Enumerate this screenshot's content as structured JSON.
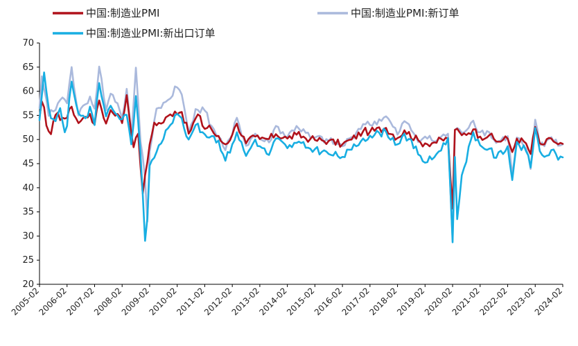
{
  "chart_data": {
    "type": "line",
    "title": "",
    "xlabel": "",
    "ylabel": "",
    "ylim": [
      20,
      70
    ],
    "yticks": [
      20,
      25,
      30,
      35,
      40,
      45,
      50,
      55,
      60,
      65,
      70
    ],
    "xticks": [
      "2005-02",
      "2006-02",
      "2007-02",
      "2008-02",
      "2009-02",
      "2010-02",
      "2011-02",
      "2012-02",
      "2013-02",
      "2014-02",
      "2015-02",
      "2016-02",
      "2017-02",
      "2018-02",
      "2019-02",
      "2020-02",
      "2021-02",
      "2022-02",
      "2023-02",
      "2024-02"
    ],
    "grid": false,
    "legend_placement": "top",
    "anchors_note_free": true,
    "series": [
      {
        "name": "中国:制造业PMI",
        "color": "#b0121b",
        "points": [
          [
            "2005-02",
            54.5
          ],
          [
            "2005-03",
            57.9
          ],
          [
            "2005-04",
            56.7
          ],
          [
            "2005-05",
            52.9
          ],
          [
            "2005-06",
            51.7
          ],
          [
            "2005-07",
            51.1
          ],
          [
            "2005-09",
            55.1
          ],
          [
            "2005-12",
            54.5
          ],
          [
            "2006-02",
            54.5
          ],
          [
            "2006-04",
            56.8
          ],
          [
            "2006-07",
            53.4
          ],
          [
            "2006-10",
            54.7
          ],
          [
            "2006-12",
            55.3
          ],
          [
            "2007-02",
            53.1
          ],
          [
            "2007-04",
            58.1
          ],
          [
            "2007-07",
            53.3
          ],
          [
            "2007-09",
            56.1
          ],
          [
            "2007-12",
            55.3
          ],
          [
            "2008-02",
            53.4
          ],
          [
            "2008-04",
            59.2
          ],
          [
            "2008-07",
            48.4
          ],
          [
            "2008-09",
            51.2
          ],
          [
            "2008-11",
            38.8
          ],
          [
            "2009-01",
            45.3
          ],
          [
            "2009-02",
            49.0
          ],
          [
            "2009-04",
            53.5
          ],
          [
            "2009-07",
            53.3
          ],
          [
            "2009-11",
            55.2
          ],
          [
            "2010-01",
            55.8
          ],
          [
            "2010-04",
            55.7
          ],
          [
            "2010-07",
            51.2
          ],
          [
            "2010-11",
            55.2
          ],
          [
            "2011-02",
            52.2
          ],
          [
            "2011-04",
            52.9
          ],
          [
            "2011-07",
            50.7
          ],
          [
            "2011-11",
            49.0
          ],
          [
            "2012-02",
            51.0
          ],
          [
            "2012-04",
            53.3
          ],
          [
            "2012-08",
            49.2
          ],
          [
            "2012-12",
            50.6
          ],
          [
            "2013-02",
            50.1
          ],
          [
            "2013-06",
            50.1
          ],
          [
            "2013-09",
            51.1
          ],
          [
            "2014-02",
            50.2
          ],
          [
            "2014-06",
            51.0
          ],
          [
            "2014-12",
            50.1
          ],
          [
            "2015-02",
            49.9
          ],
          [
            "2015-08",
            49.7
          ],
          [
            "2016-02",
            49.0
          ],
          [
            "2016-06",
            50.0
          ],
          [
            "2016-11",
            51.7
          ],
          [
            "2017-02",
            51.6
          ],
          [
            "2017-09",
            52.4
          ],
          [
            "2018-02",
            50.3
          ],
          [
            "2018-05",
            51.9
          ],
          [
            "2018-12",
            49.4
          ],
          [
            "2019-02",
            49.2
          ],
          [
            "2019-06",
            49.4
          ],
          [
            "2019-12",
            50.2
          ],
          [
            "2020-02",
            35.7
          ],
          [
            "2020-03",
            52.0
          ],
          [
            "2020-06",
            50.9
          ],
          [
            "2020-11",
            52.1
          ],
          [
            "2021-02",
            50.6
          ],
          [
            "2021-06",
            50.9
          ],
          [
            "2021-09",
            49.6
          ],
          [
            "2022-02",
            50.2
          ],
          [
            "2022-04",
            47.4
          ],
          [
            "2022-06",
            50.2
          ],
          [
            "2022-10",
            49.2
          ],
          [
            "2022-12",
            47.0
          ],
          [
            "2023-02",
            52.6
          ],
          [
            "2023-04",
            49.2
          ],
          [
            "2023-06",
            49.0
          ],
          [
            "2023-09",
            50.2
          ],
          [
            "2023-12",
            49.0
          ],
          [
            "2024-02",
            49.1
          ]
        ]
      },
      {
        "name": "中国:制造业PMI:新订单",
        "color": "#aab9dc",
        "points": [
          [
            "2005-02",
            56.5
          ],
          [
            "2005-03",
            63.1
          ],
          [
            "2005-04",
            60.5
          ],
          [
            "2005-06",
            54.9
          ],
          [
            "2005-08",
            55.8
          ],
          [
            "2005-10",
            57.5
          ],
          [
            "2005-12",
            58.7
          ],
          [
            "2006-02",
            57.5
          ],
          [
            "2006-04",
            65.0
          ],
          [
            "2006-07",
            55.0
          ],
          [
            "2006-10",
            57.3
          ],
          [
            "2006-12",
            58.9
          ],
          [
            "2007-02",
            56.4
          ],
          [
            "2007-04",
            65.1
          ],
          [
            "2007-07",
            56.1
          ],
          [
            "2007-09",
            59.5
          ],
          [
            "2007-12",
            57.5
          ],
          [
            "2008-02",
            54.4
          ],
          [
            "2008-04",
            60.5
          ],
          [
            "2008-06",
            50.9
          ],
          [
            "2008-08",
            64.9
          ],
          [
            "2008-10",
            49.7
          ],
          [
            "2008-12",
            41.9
          ],
          [
            "2009-01",
            33.0
          ],
          [
            "2009-02",
            47.5
          ],
          [
            "2009-05",
            56.4
          ],
          [
            "2009-09",
            57.8
          ],
          [
            "2009-11",
            58.5
          ],
          [
            "2010-01",
            61.0
          ],
          [
            "2010-04",
            59.3
          ],
          [
            "2010-07",
            51.4
          ],
          [
            "2010-10",
            56.3
          ],
          [
            "2011-02",
            56.0
          ],
          [
            "2011-05",
            52.8
          ],
          [
            "2011-08",
            50.6
          ],
          [
            "2011-11",
            47.8
          ],
          [
            "2012-02",
            51.0
          ],
          [
            "2012-04",
            54.5
          ],
          [
            "2012-08",
            48.7
          ],
          [
            "2012-12",
            51.2
          ],
          [
            "2013-02",
            50.1
          ],
          [
            "2013-06",
            49.4
          ],
          [
            "2013-09",
            52.8
          ],
          [
            "2014-02",
            50.5
          ],
          [
            "2014-06",
            52.8
          ],
          [
            "2014-12",
            50.4
          ],
          [
            "2015-02",
            50.4
          ],
          [
            "2015-08",
            49.7
          ],
          [
            "2016-02",
            48.6
          ],
          [
            "2016-06",
            50.5
          ],
          [
            "2016-11",
            53.2
          ],
          [
            "2017-02",
            53.0
          ],
          [
            "2017-09",
            54.8
          ],
          [
            "2018-02",
            51.0
          ],
          [
            "2018-05",
            53.8
          ],
          [
            "2018-12",
            49.7
          ],
          [
            "2019-02",
            50.6
          ],
          [
            "2019-06",
            49.6
          ],
          [
            "2019-12",
            51.2
          ],
          [
            "2020-02",
            29.3
          ],
          [
            "2020-03",
            52.0
          ],
          [
            "2020-06",
            51.4
          ],
          [
            "2020-11",
            53.9
          ],
          [
            "2021-02",
            51.5
          ],
          [
            "2021-06",
            51.5
          ],
          [
            "2021-09",
            49.3
          ],
          [
            "2022-02",
            50.7
          ],
          [
            "2022-04",
            42.6
          ],
          [
            "2022-06",
            50.4
          ],
          [
            "2022-10",
            48.1
          ],
          [
            "2022-12",
            43.9
          ],
          [
            "2023-02",
            54.1
          ],
          [
            "2023-04",
            48.8
          ],
          [
            "2023-06",
            48.6
          ],
          [
            "2023-09",
            50.5
          ],
          [
            "2023-12",
            48.7
          ],
          [
            "2024-02",
            49.0
          ]
        ]
      },
      {
        "name": "中国:制造业PMI:新出口订单",
        "color": "#18aee2",
        "points": [
          [
            "2005-02",
            54.0
          ],
          [
            "2005-04",
            63.9
          ],
          [
            "2005-05",
            60.0
          ],
          [
            "2005-07",
            54.4
          ],
          [
            "2005-09",
            53.8
          ],
          [
            "2005-11",
            56.5
          ],
          [
            "2006-01",
            51.5
          ],
          [
            "2006-02",
            52.8
          ],
          [
            "2006-03",
            58.5
          ],
          [
            "2006-04",
            62.0
          ],
          [
            "2006-07",
            55.4
          ],
          [
            "2006-10",
            54.4
          ],
          [
            "2006-12",
            56.8
          ],
          [
            "2007-02",
            53.0
          ],
          [
            "2007-04",
            61.7
          ],
          [
            "2007-07",
            54.8
          ],
          [
            "2007-09",
            57.0
          ],
          [
            "2007-12",
            55.0
          ],
          [
            "2008-02",
            54.2
          ],
          [
            "2008-04",
            55.1
          ],
          [
            "2008-06",
            49.0
          ],
          [
            "2008-08",
            59.0
          ],
          [
            "2008-10",
            47.0
          ],
          [
            "2008-12",
            29.0
          ],
          [
            "2009-01",
            33.7
          ],
          [
            "2009-02",
            44.6
          ],
          [
            "2009-06",
            48.8
          ],
          [
            "2009-09",
            51.9
          ],
          [
            "2009-11",
            53.0
          ],
          [
            "2010-01",
            55.0
          ],
          [
            "2010-04",
            54.4
          ],
          [
            "2010-07",
            50.0
          ],
          [
            "2010-10",
            53.0
          ],
          [
            "2011-02",
            51.1
          ],
          [
            "2011-05",
            50.7
          ],
          [
            "2011-08",
            49.8
          ],
          [
            "2011-11",
            45.6
          ],
          [
            "2012-02",
            49.0
          ],
          [
            "2012-04",
            51.5
          ],
          [
            "2012-08",
            46.6
          ],
          [
            "2012-12",
            50.0
          ],
          [
            "2013-02",
            48.6
          ],
          [
            "2013-06",
            46.8
          ],
          [
            "2013-09",
            50.2
          ],
          [
            "2014-02",
            48.2
          ],
          [
            "2014-06",
            49.3
          ],
          [
            "2014-12",
            48.1
          ],
          [
            "2015-02",
            48.0
          ],
          [
            "2015-08",
            47.0
          ],
          [
            "2016-02",
            46.4
          ],
          [
            "2016-06",
            47.9
          ],
          [
            "2016-11",
            50.2
          ],
          [
            "2017-02",
            50.8
          ],
          [
            "2017-09",
            51.6
          ],
          [
            "2018-02",
            49.0
          ],
          [
            "2018-05",
            51.2
          ],
          [
            "2018-12",
            46.6
          ],
          [
            "2019-02",
            45.2
          ],
          [
            "2019-06",
            46.3
          ],
          [
            "2019-12",
            50.3
          ],
          [
            "2020-02",
            28.7
          ],
          [
            "2020-03",
            46.4
          ],
          [
            "2020-04",
            33.5
          ],
          [
            "2020-06",
            42.6
          ],
          [
            "2020-11",
            51.5
          ],
          [
            "2021-02",
            48.8
          ],
          [
            "2021-06",
            48.1
          ],
          [
            "2021-09",
            46.2
          ],
          [
            "2022-02",
            48.6
          ],
          [
            "2022-04",
            41.6
          ],
          [
            "2022-06",
            49.5
          ],
          [
            "2022-10",
            47.6
          ],
          [
            "2022-12",
            44.2
          ],
          [
            "2023-02",
            52.4
          ],
          [
            "2023-04",
            47.6
          ],
          [
            "2023-06",
            46.4
          ],
          [
            "2023-09",
            47.8
          ],
          [
            "2023-12",
            45.8
          ],
          [
            "2024-02",
            46.3
          ]
        ]
      }
    ]
  }
}
